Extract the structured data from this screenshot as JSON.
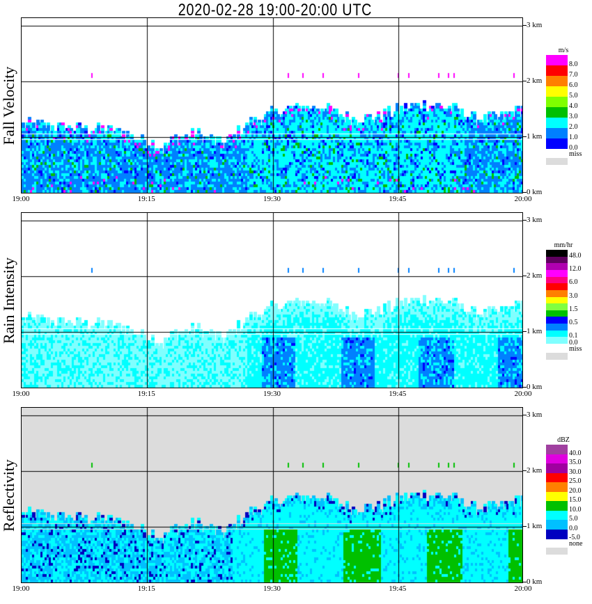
{
  "title": "2020-02-28   19:00-20:00 UTC",
  "chart_data": [
    {
      "type": "heatmap",
      "name": "fall-velocity",
      "ylabel": "Fall Velocity",
      "x_ticks": [
        "19:00",
        "19:15",
        "19:30",
        "19:45",
        "20:00"
      ],
      "y_ticks": [
        "0 km",
        "1 km",
        "2 km",
        "3 km"
      ],
      "xlim": [
        "19:00",
        "20:00"
      ],
      "ylim_km": [
        0,
        3.0
      ],
      "background": "#ffffff",
      "legend": {
        "unit": "m/s",
        "colors": [
          "#ff00ff",
          "#ff0000",
          "#ff8000",
          "#ffff00",
          "#80ff00",
          "#00c000",
          "#00ffff",
          "#0080ff",
          "#0000ff"
        ],
        "labels": [
          "8.0",
          "7.0",
          "6.0",
          "5.0",
          "4.0",
          "3.0",
          "2.0",
          "1.0",
          "0.0"
        ],
        "missing_label": "miss"
      },
      "echo_top_km_approx": {
        "19:00": 1.2,
        "19:10": 1.1,
        "19:15": 0.9,
        "19:20": 1.1,
        "19:30": 1.4,
        "19:40": 1.5,
        "19:50": 1.5,
        "20:00": 1.3
      },
      "dominant_values": "0.0-3.0 m/s (blue to cyan), sporadic 3-4 and 8 m/s"
    },
    {
      "type": "heatmap",
      "name": "rain-intensity",
      "ylabel": "Rain Intensity",
      "x_ticks": [
        "19:00",
        "19:15",
        "19:30",
        "19:45",
        "20:00"
      ],
      "y_ticks": [
        "0 km",
        "1 km",
        "2 km",
        "3 km"
      ],
      "xlim": [
        "19:00",
        "20:00"
      ],
      "ylim_km": [
        0,
        3.0
      ],
      "background": "#ffffff",
      "legend": {
        "unit": "mm/hr",
        "colors": [
          "#000000",
          "#600060",
          "#b000b0",
          "#ff00ff",
          "#ff0080",
          "#ff0000",
          "#ff8000",
          "#ffff00",
          "#80ff40",
          "#00c000",
          "#0000ff",
          "#0080ff",
          "#00ffff",
          "#80ffff"
        ],
        "labels": [
          "48.0",
          "",
          "12.0",
          "",
          "6.0",
          "",
          "3.0",
          "",
          "1.5",
          "",
          "0.5",
          "",
          "0.1",
          "0.0"
        ],
        "missing_label": "miss"
      },
      "dominant_values": "0.0-0.5 mm/hr"
    },
    {
      "type": "heatmap",
      "name": "reflectivity",
      "ylabel": "Reflectivity",
      "x_ticks": [
        "19:00",
        "19:15",
        "19:30",
        "19:45",
        "20:00"
      ],
      "y_ticks": [
        "0 km",
        "1 km",
        "2 km",
        "3 km"
      ],
      "xlim": [
        "19:00",
        "20:00"
      ],
      "ylim_km": [
        0,
        3.0
      ],
      "background": "#dcdcdc",
      "legend": {
        "unit": "dBZ",
        "colors": [
          "#a040a0",
          "#e000e0",
          "#a000a0",
          "#ff0000",
          "#ff8000",
          "#ffff00",
          "#00c000",
          "#00ffff",
          "#00c0ff",
          "#0000c0"
        ],
        "labels": [
          "40.0",
          "35.0",
          "30.0",
          "25.0",
          "20.0",
          "15.0",
          "10.0",
          "5.0",
          "0.0",
          "-5.0"
        ],
        "missing_label": "none"
      },
      "dominant_values": "-5 to 15 dBZ"
    }
  ]
}
